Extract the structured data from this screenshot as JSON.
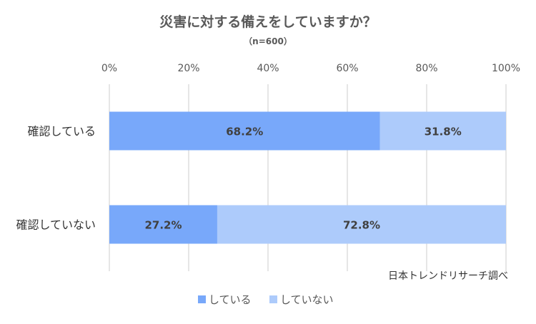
{
  "chart_data": {
    "type": "bar",
    "stacked": true,
    "orientation": "horizontal",
    "title": "災害に対する備えをしていますか？",
    "subtitle": "（n=600）",
    "categories": [
      "確認している",
      "確認していない"
    ],
    "series": [
      {
        "name": "している",
        "values": [
          68.2,
          27.2
        ],
        "labels": [
          "68.2%",
          "27.2%"
        ],
        "color": "#78a8fa"
      },
      {
        "name": "していない",
        "values": [
          31.8,
          72.8
        ],
        "labels": [
          "31.8%",
          "72.8%"
        ],
        "color": "#adcbfb"
      }
    ],
    "x_ticks": [
      "0%",
      "20%",
      "40%",
      "60%",
      "80%",
      "100%"
    ],
    "xlim": [
      0,
      100
    ],
    "grid": true,
    "legend_position": "bottom",
    "source_note": "日本トレンドリサーチ調べ"
  }
}
